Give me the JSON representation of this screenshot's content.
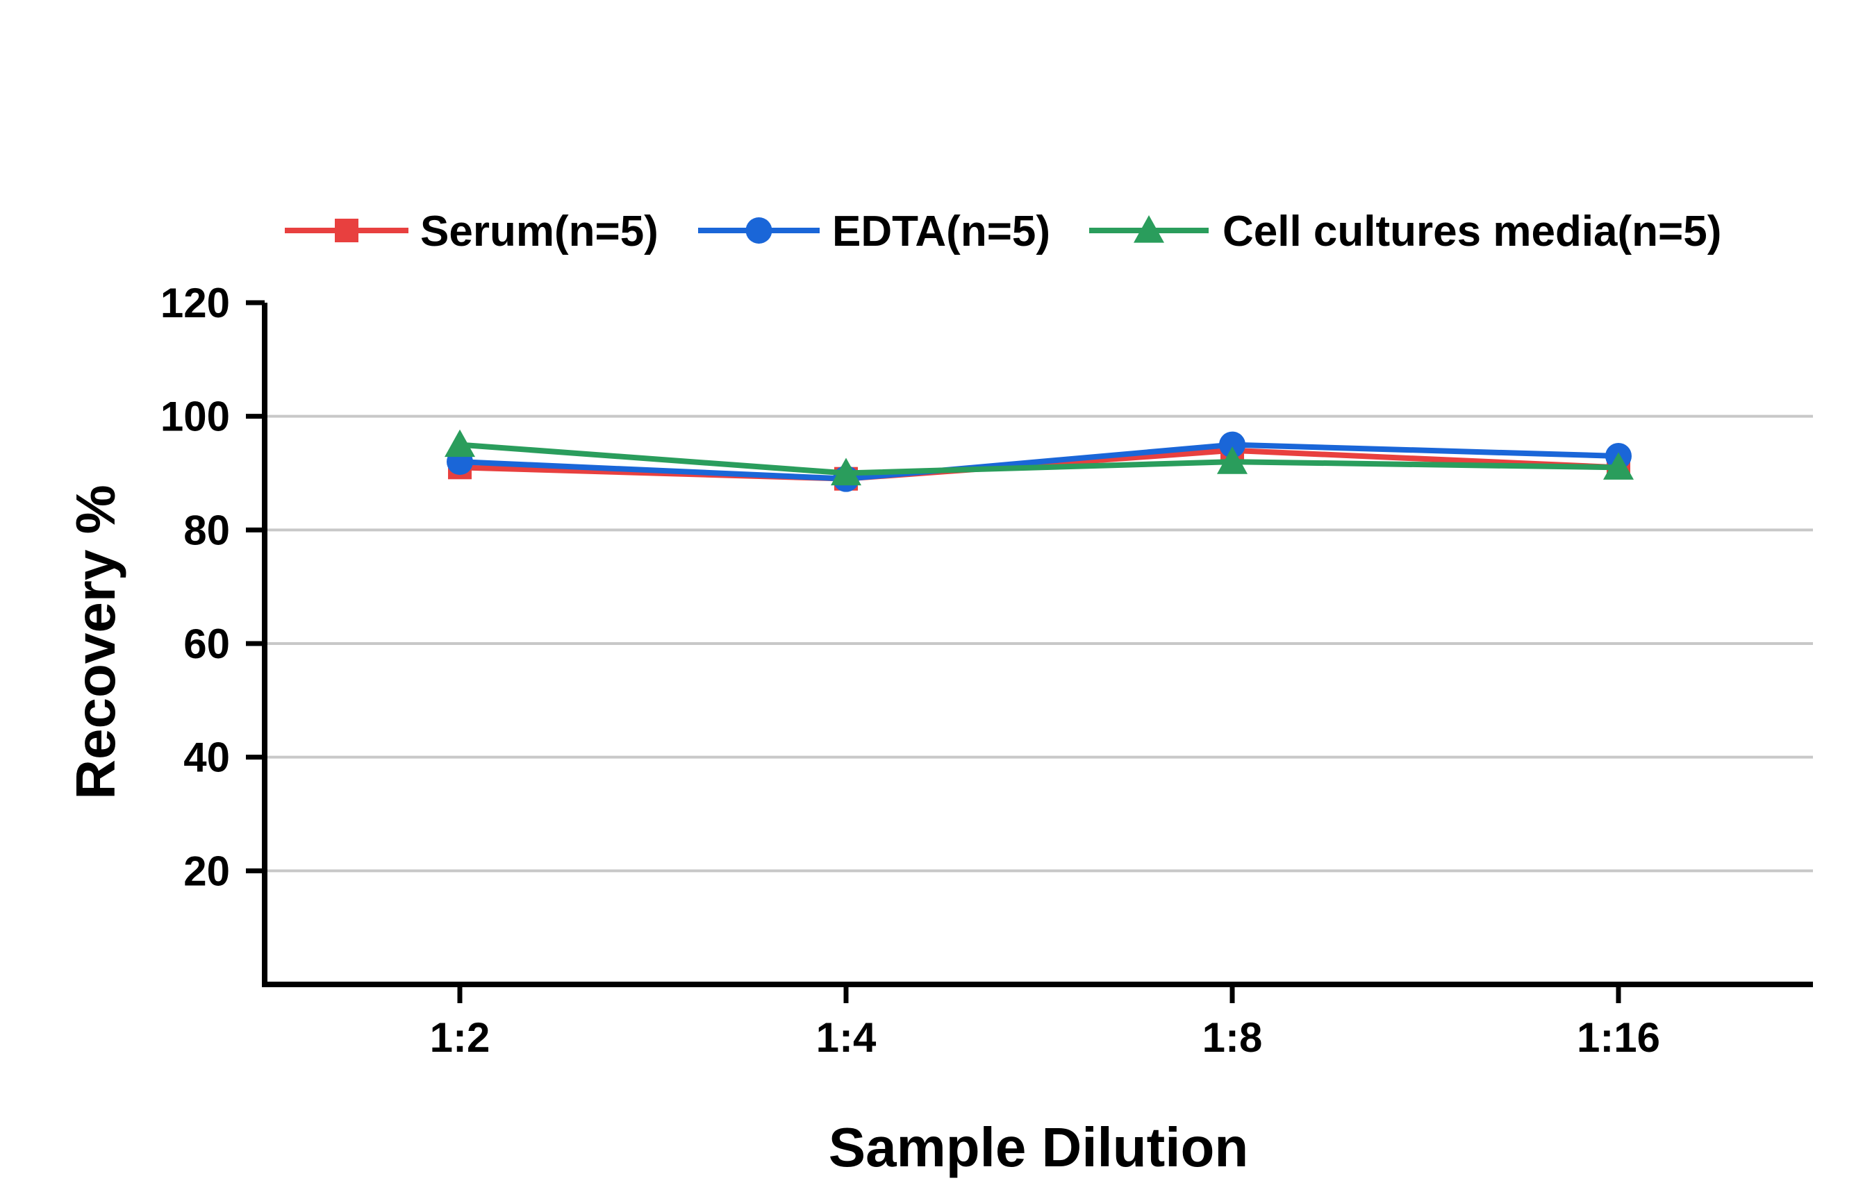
{
  "chart_data": {
    "type": "line",
    "categories": [
      "1:2",
      "1:4",
      "1:8",
      "1:16"
    ],
    "xlabel": "Sample Dilution",
    "ylabel": "Recovery %",
    "ylim": [
      0,
      120
    ],
    "yticks": [
      20,
      40,
      60,
      80,
      100,
      120
    ],
    "grid": true,
    "legend_position": "top",
    "series": [
      {
        "name": "Serum(n=5)",
        "color": "#e8403f",
        "marker": "square",
        "values": [
          91,
          89,
          94,
          91
        ]
      },
      {
        "name": "EDTA(n=5)",
        "color": "#1a66d8",
        "marker": "circle",
        "values": [
          92,
          89,
          95,
          93
        ]
      },
      {
        "name": "Cell cultures media(n=5)",
        "color": "#2a9d5c",
        "marker": "triangle",
        "values": [
          95,
          90,
          92,
          91
        ]
      }
    ]
  }
}
